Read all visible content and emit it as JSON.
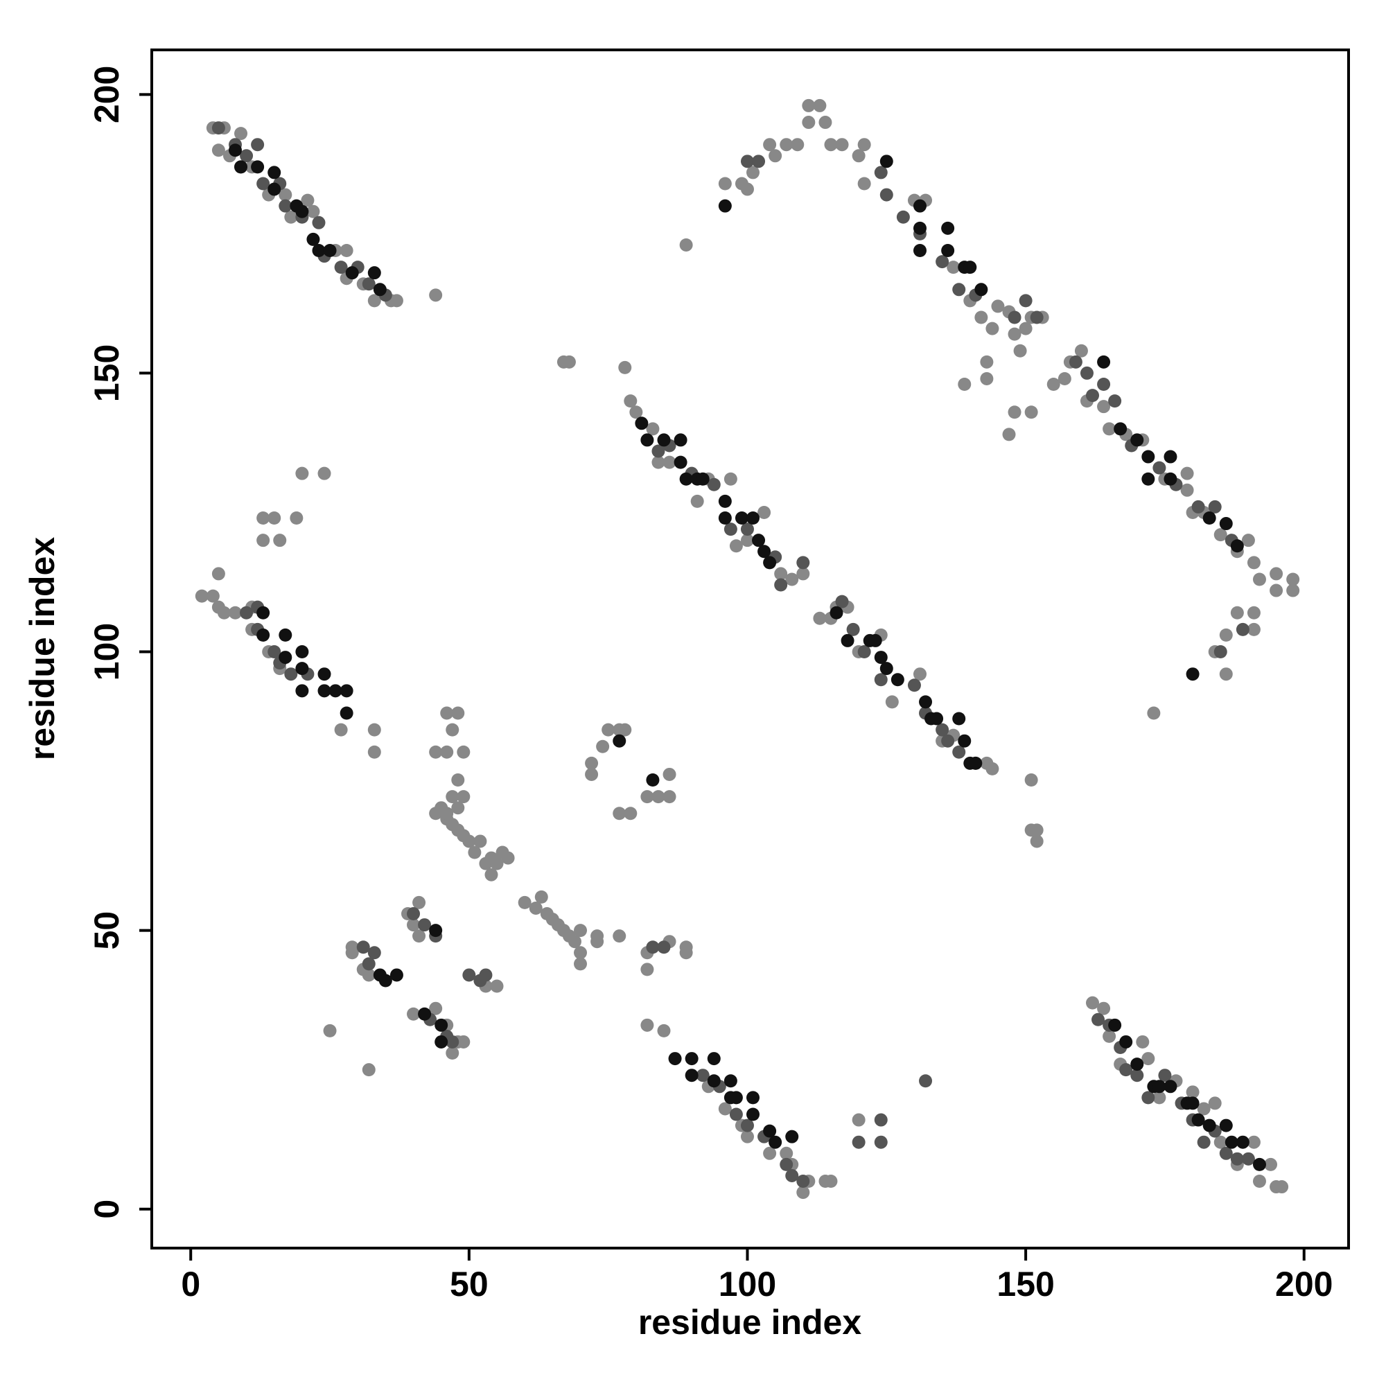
{
  "chart_data": {
    "type": "scatter",
    "xlabel": "residue index",
    "ylabel": "residue index",
    "xlim": [
      -7,
      208
    ],
    "ylim": [
      -7,
      208
    ],
    "xticks": [
      0,
      50,
      100,
      150,
      200
    ],
    "yticks": [
      0,
      50,
      100,
      150,
      200
    ],
    "grid": false,
    "series": [
      {
        "color": "#888888",
        "x": [
          4,
          6,
          5,
          7,
          9,
          11,
          14,
          17,
          18,
          21,
          22,
          26,
          28,
          28,
          31,
          33,
          36,
          37,
          44,
          2,
          4,
          5,
          5,
          6,
          8,
          11,
          11,
          14,
          16,
          33,
          33,
          27,
          78,
          79,
          80,
          83,
          84,
          86,
          91,
          93,
          97,
          98,
          100,
          103,
          106,
          108,
          110,
          113,
          115,
          116,
          118,
          120,
          124,
          126,
          131,
          135,
          137,
          141,
          143,
          144,
          151,
          152,
          67,
          68,
          96,
          99,
          100,
          101,
          104,
          105,
          107,
          109,
          111,
          111,
          113,
          114,
          115,
          117,
          120,
          121,
          121,
          130,
          132,
          137,
          140,
          142,
          144,
          145,
          147,
          148,
          149,
          150,
          151,
          153,
          151,
          148,
          147,
          139,
          143,
          143,
          155,
          157,
          158,
          160,
          161,
          164,
          165,
          168,
          171,
          175,
          179,
          179,
          180,
          182,
          185,
          188,
          190,
          191,
          192,
          195,
          195,
          198,
          198,
          191,
          191,
          188,
          186,
          184,
          186,
          173,
          89,
          82,
          85,
          93,
          96,
          99,
          100,
          104,
          107,
          108,
          110,
          111,
          114,
          115,
          120,
          162,
          164,
          165,
          167,
          171,
          172,
          174,
          177,
          180,
          182,
          184,
          185,
          188,
          191,
          192,
          194,
          195,
          196,
          45,
          46,
          47,
          48,
          48,
          49,
          50,
          51,
          52,
          53,
          54,
          54,
          55,
          56,
          57,
          60,
          62,
          63,
          64,
          65,
          66,
          67,
          68,
          69,
          70,
          70,
          70,
          73,
          73,
          77,
          82,
          82,
          86,
          89,
          89,
          46,
          47,
          48,
          46,
          44,
          49,
          47,
          48,
          49,
          75,
          77,
          78,
          72,
          72,
          74,
          77,
          79,
          82,
          84,
          86,
          86,
          41,
          39,
          41,
          29,
          29,
          31,
          32,
          25,
          32,
          40,
          44,
          46,
          47,
          48,
          49,
          53,
          55,
          40,
          13,
          13,
          15,
          16,
          19,
          20,
          24,
          152,
          44,
          46,
          151
        ],
        "values": [
          194,
          194,
          190,
          189,
          193,
          187,
          182,
          182,
          178,
          181,
          179,
          172,
          172,
          167,
          166,
          163,
          163,
          163,
          164,
          110,
          110,
          114,
          108,
          107,
          107,
          108,
          104,
          100,
          97,
          86,
          82,
          86,
          151,
          145,
          143,
          140,
          134,
          134,
          127,
          131,
          131,
          119,
          120,
          125,
          114,
          113,
          114,
          106,
          106,
          108,
          108,
          100,
          103,
          91,
          96,
          84,
          85,
          80,
          80,
          79,
          77,
          68,
          152,
          152,
          184,
          184,
          183,
          186,
          191,
          189,
          191,
          191,
          198,
          195,
          198,
          195,
          191,
          191,
          189,
          191,
          184,
          181,
          181,
          169,
          163,
          160,
          158,
          162,
          161,
          157,
          154,
          158,
          160,
          160,
          143,
          143,
          139,
          148,
          149,
          152,
          148,
          149,
          152,
          154,
          145,
          144,
          140,
          139,
          138,
          131,
          132,
          129,
          125,
          125,
          121,
          118,
          120,
          116,
          113,
          114,
          111,
          113,
          111,
          107,
          104,
          107,
          103,
          100,
          96,
          89,
          173,
          33,
          32,
          22,
          18,
          15,
          13,
          10,
          10,
          8,
          3,
          5,
          5,
          5,
          16,
          37,
          36,
          31,
          26,
          30,
          27,
          20,
          23,
          21,
          18,
          19,
          12,
          8,
          12,
          5,
          8,
          4,
          4,
          72,
          70,
          69,
          72,
          68,
          67,
          66,
          64,
          66,
          62,
          60,
          63,
          62,
          64,
          63,
          55,
          54,
          56,
          53,
          52,
          51,
          50,
          49,
          48,
          50,
          46,
          44,
          48,
          49,
          49,
          46,
          43,
          48,
          47,
          46,
          89,
          86,
          89,
          82,
          82,
          82,
          74,
          77,
          74,
          86,
          86,
          86,
          80,
          78,
          83,
          71,
          71,
          74,
          74,
          78,
          74,
          55,
          53,
          49,
          46,
          47,
          43,
          42,
          32,
          25,
          35,
          36,
          33,
          28,
          30,
          30,
          40,
          40,
          51,
          120,
          124,
          124,
          120,
          124,
          132,
          132,
          66,
          71,
          71,
          68
        ]
      },
      {
        "color": "#555555",
        "x": [
          5,
          8,
          10,
          12,
          13,
          16,
          17,
          20,
          23,
          24,
          27,
          30,
          32,
          35,
          9,
          10,
          12,
          15,
          18,
          21,
          12,
          16,
          84,
          86,
          90,
          94,
          97,
          100,
          105,
          106,
          110,
          117,
          119,
          121,
          124,
          130,
          132,
          135,
          136,
          138,
          100,
          102,
          124,
          125,
          128,
          131,
          135,
          138,
          141,
          148,
          150,
          152,
          159,
          161,
          162,
          164,
          166,
          169,
          174,
          177,
          181,
          184,
          187,
          189,
          185,
          92,
          95,
          98,
          100,
          103,
          107,
          108,
          110,
          163,
          165,
          167,
          168,
          170,
          172,
          175,
          178,
          180,
          182,
          184,
          186,
          188,
          190,
          40,
          42,
          44,
          31,
          32,
          33,
          50,
          52,
          53,
          43,
          46,
          47,
          83,
          85,
          132,
          124,
          124,
          120
        ],
        "values": [
          194,
          191,
          189,
          191,
          184,
          184,
          180,
          178,
          177,
          171,
          169,
          169,
          166,
          164,
          187,
          107,
          104,
          100,
          96,
          96,
          108,
          98,
          136,
          137,
          132,
          130,
          122,
          122,
          117,
          112,
          116,
          109,
          104,
          100,
          95,
          94,
          89,
          86,
          84,
          82,
          188,
          188,
          186,
          182,
          178,
          175,
          170,
          165,
          164,
          160,
          163,
          160,
          152,
          150,
          146,
          148,
          145,
          137,
          133,
          130,
          126,
          126,
          120,
          104,
          100,
          24,
          22,
          17,
          15,
          13,
          8,
          6,
          5,
          34,
          33,
          29,
          25,
          24,
          20,
          24,
          19,
          16,
          12,
          14,
          10,
          9,
          9,
          53,
          51,
          49,
          47,
          44,
          46,
          42,
          41,
          42,
          34,
          31,
          30,
          47,
          47,
          23,
          16,
          12,
          12
        ]
      },
      {
        "color": "#111111",
        "x": [
          8,
          9,
          12,
          15,
          15,
          19,
          20,
          22,
          23,
          25,
          29,
          33,
          34,
          13,
          13,
          17,
          17,
          20,
          20,
          20,
          24,
          24,
          26,
          28,
          28,
          81,
          82,
          85,
          88,
          88,
          89,
          91,
          92,
          96,
          96,
          99,
          101,
          102,
          103,
          104,
          116,
          118,
          122,
          123,
          124,
          125,
          127,
          132,
          133,
          134,
          138,
          139,
          140,
          141,
          96,
          125,
          131,
          131,
          136,
          131,
          136,
          139,
          140,
          142,
          164,
          167,
          170,
          172,
          172,
          176,
          176,
          183,
          186,
          188,
          180,
          87,
          90,
          90,
          94,
          94,
          97,
          97,
          98,
          101,
          101,
          104,
          105,
          108,
          166,
          168,
          170,
          173,
          174,
          176,
          179,
          180,
          181,
          183,
          186,
          187,
          189,
          192,
          34,
          35,
          37,
          42,
          45,
          45,
          44,
          83,
          77
        ],
        "values": [
          190,
          187,
          187,
          186,
          183,
          180,
          179,
          174,
          172,
          172,
          168,
          168,
          165,
          107,
          103,
          103,
          99,
          100,
          97,
          93,
          96,
          93,
          93,
          93,
          89,
          141,
          138,
          138,
          138,
          134,
          131,
          131,
          131,
          127,
          124,
          124,
          124,
          120,
          118,
          116,
          107,
          102,
          102,
          102,
          99,
          97,
          95,
          91,
          88,
          88,
          88,
          84,
          80,
          80,
          180,
          188,
          180,
          176,
          176,
          172,
          172,
          169,
          169,
          165,
          152,
          140,
          138,
          135,
          131,
          135,
          131,
          124,
          123,
          119,
          96,
          27,
          27,
          24,
          27,
          23,
          23,
          20,
          20,
          20,
          17,
          14,
          12,
          13,
          33,
          30,
          26,
          22,
          22,
          22,
          19,
          19,
          16,
          15,
          15,
          12,
          12,
          8,
          42,
          41,
          42,
          35,
          33,
          30,
          50,
          77,
          84
        ]
      }
    ]
  }
}
